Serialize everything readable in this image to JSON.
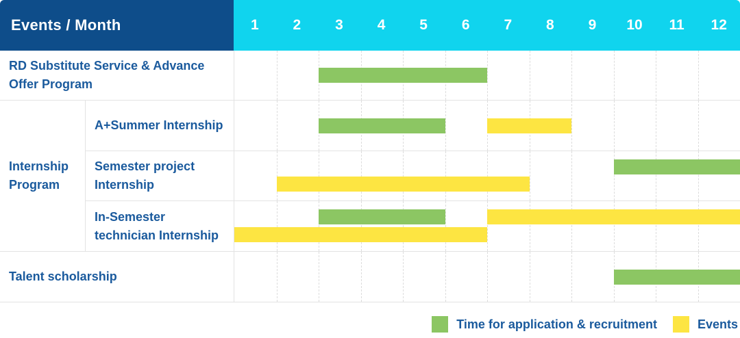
{
  "header": {
    "title": "Events / Month",
    "months": [
      "1",
      "2",
      "3",
      "4",
      "5",
      "6",
      "7",
      "8",
      "9",
      "10",
      "11",
      "12"
    ]
  },
  "colors": {
    "navy": "#0E4D8A",
    "cyan": "#10D4EE",
    "green": "#8CC663",
    "yellow": "#FDE542",
    "label_text": "#1A5A9D",
    "header_text": "#FFFFFF",
    "grid_solid": "#E3E3E3",
    "grid_dashed": "#DCDCDC"
  },
  "legend": {
    "items": [
      {
        "color": "green",
        "label": "Time for application & recruitment"
      },
      {
        "color": "yellow",
        "label": "Events"
      }
    ]
  },
  "chart_data": {
    "type": "gantt",
    "title": "Events / Month",
    "x_axis": {
      "unit": "month",
      "ticks": [
        1,
        2,
        3,
        4,
        5,
        6,
        7,
        8,
        9,
        10,
        11,
        12
      ],
      "range": [
        1,
        12
      ]
    },
    "series_legend": [
      {
        "key": "application",
        "label": "Time for application & recruitment",
        "color": "#8CC663"
      },
      {
        "key": "events",
        "label": "Events",
        "color": "#FDE542"
      }
    ],
    "group_label": "Internship Program",
    "rows": [
      {
        "label": "RD Substitute Service & Advance Offer Program",
        "group": "",
        "lanes": 1,
        "bars": [
          {
            "series": "application",
            "start_month": 3,
            "end_month": 6,
            "lane": 0
          }
        ]
      },
      {
        "label": "A+Summer Internship",
        "group": "Internship Program",
        "lanes": 1,
        "bars": [
          {
            "series": "application",
            "start_month": 3,
            "end_month": 5,
            "lane": 0
          },
          {
            "series": "events",
            "start_month": 7,
            "end_month": 8,
            "lane": 0
          }
        ]
      },
      {
        "label": "Semester project Internship",
        "group": "Internship Program",
        "lanes": 2,
        "bars": [
          {
            "series": "application",
            "start_month": 10,
            "end_month": 12,
            "lane": 0
          },
          {
            "series": "events",
            "start_month": 2,
            "end_month": 7,
            "lane": 1
          }
        ]
      },
      {
        "label": "In-Semester technician Internship",
        "group": "Internship Program",
        "lanes": 2,
        "bars": [
          {
            "series": "application",
            "start_month": 3,
            "end_month": 5,
            "lane": 0
          },
          {
            "series": "events",
            "start_month": 7,
            "end_month": 12,
            "lane": 0
          },
          {
            "series": "events",
            "start_month": 1,
            "end_month": 6,
            "lane": 1
          }
        ]
      },
      {
        "label": "Talent scholarship",
        "group": "",
        "lanes": 1,
        "bars": [
          {
            "series": "application",
            "start_month": 10,
            "end_month": 12,
            "lane": 0
          }
        ]
      }
    ]
  }
}
